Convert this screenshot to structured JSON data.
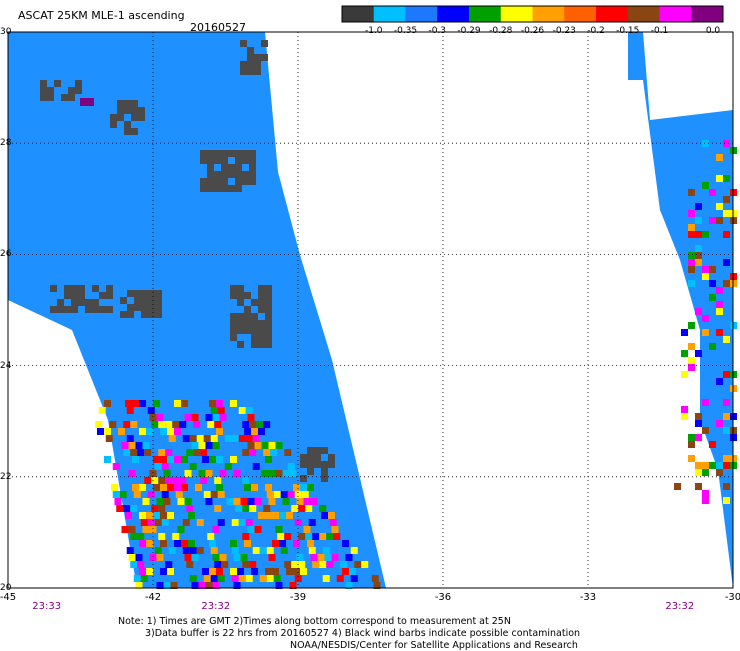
{
  "title": "ASCAT 25KM MLE-1 ascending",
  "date": "20160527",
  "colorbar": {
    "colors": [
      "#3a3a3a",
      "#00bfff",
      "#1e78ff",
      "#0000ff",
      "#00a000",
      "#ffff00",
      "#ffa000",
      "#ff6000",
      "#ff0000",
      "#8b4513",
      "#ff00ff",
      "#800080"
    ],
    "labels": [
      "-1.0",
      "-0.35",
      "-0.3",
      "-0.29",
      "-0.28",
      "-0.26",
      "-0.23",
      "-0.2",
      "-0.15",
      "-0.1",
      "0.0"
    ]
  },
  "axes": {
    "lat_ticks": [
      "30",
      "28",
      "26",
      "24",
      "22",
      "20"
    ],
    "lon_ticks": [
      "-45",
      "-42",
      "-39",
      "-36",
      "-33",
      "-30"
    ],
    "lat_range": [
      20,
      30
    ],
    "lon_range": [
      -45,
      -30
    ]
  },
  "swaths": [
    {
      "time": "23:33",
      "lon_label_position": -44.2
    },
    {
      "time": "23:32",
      "lon_label_position": -40.7
    },
    {
      "time": "23:32",
      "lon_label_position": -31.1
    }
  ],
  "notes": {
    "line1": "Note: 1) Times are GMT 2)Times along bottom correspond to measurement at 25N",
    "line2": "3)Data buffer is 22 hrs from 20160527 4) Black wind barbs indicate possible contamination",
    "line3": "NOAA/NESDIS/Center for Satellite Applications and Research"
  }
}
